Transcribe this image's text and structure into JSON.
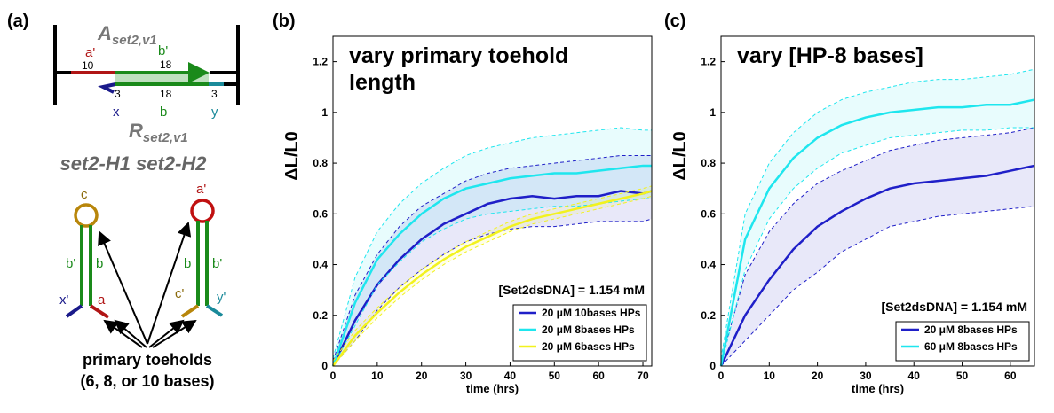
{
  "diagram": {
    "panel_label": "(a)",
    "complex_top": {
      "label": "A",
      "subscript": "set2,v1"
    },
    "complex_bottom": {
      "label": "R",
      "subscript": "set2,v1"
    },
    "top_domains": [
      {
        "name": "a'",
        "length": "10"
      },
      {
        "name": "b'",
        "length": "18"
      }
    ],
    "bottom_domains": [
      {
        "name": "x",
        "length": "3"
      },
      {
        "name": "b",
        "length": "18"
      },
      {
        "name": "y",
        "length": "3"
      }
    ],
    "hairpins_title": "set2-H1 set2-H2",
    "h1": {
      "loop": "c",
      "stem_left": "b'",
      "stem_right": "b",
      "tail_left": "x'",
      "tail_right": "a"
    },
    "h2": {
      "loop": "a'",
      "stem_left": "b",
      "stem_right": "b'",
      "tail_left": "c'",
      "tail_right": "y'"
    },
    "caption": [
      "primary toeholds",
      "(6, 8, or 10 bases)"
    ]
  },
  "chart_data": [
    {
      "type": "line",
      "panel_label": "(b)",
      "title": [
        "vary primary toehold",
        "length"
      ],
      "annotation": "[Set2dsDNA] = 1.154 mM",
      "xlabel": "time (hrs)",
      "ylabel": "ΔL/L0",
      "x": [
        0,
        5,
        10,
        15,
        20,
        25,
        30,
        35,
        40,
        45,
        50,
        55,
        60,
        65,
        70,
        72
      ],
      "xlim": [
        0,
        72
      ],
      "xticks": [
        0,
        10,
        20,
        30,
        40,
        50,
        60,
        70
      ],
      "ylim": [
        0,
        1.3
      ],
      "yticks": [
        0,
        0.2,
        0.4,
        0.6,
        0.8,
        1,
        1.2
      ],
      "legend": "lower right",
      "series": [
        {
          "name": "20 μM 10bases HPs",
          "color": "#1f1fc8",
          "values": [
            0,
            0.18,
            0.32,
            0.42,
            0.5,
            0.56,
            0.6,
            0.64,
            0.66,
            0.67,
            0.66,
            0.67,
            0.67,
            0.69,
            0.68,
            0.69
          ],
          "upper": [
            0.02,
            0.28,
            0.44,
            0.55,
            0.63,
            0.68,
            0.73,
            0.76,
            0.78,
            0.79,
            0.8,
            0.81,
            0.82,
            0.83,
            0.83,
            0.83
          ],
          "lower": [
            0,
            0.1,
            0.22,
            0.31,
            0.38,
            0.44,
            0.49,
            0.52,
            0.54,
            0.55,
            0.55,
            0.56,
            0.57,
            0.57,
            0.57,
            0.58
          ]
        },
        {
          "name": "20 μM 8bases HPs",
          "color": "#1ee6ee",
          "values": [
            0,
            0.25,
            0.42,
            0.52,
            0.6,
            0.66,
            0.7,
            0.72,
            0.74,
            0.75,
            0.76,
            0.76,
            0.77,
            0.78,
            0.79,
            0.79
          ],
          "upper": [
            0.03,
            0.35,
            0.53,
            0.64,
            0.72,
            0.78,
            0.83,
            0.86,
            0.88,
            0.9,
            0.91,
            0.92,
            0.93,
            0.94,
            0.93,
            0.93
          ],
          "lower": [
            0,
            0.16,
            0.32,
            0.41,
            0.49,
            0.54,
            0.58,
            0.6,
            0.61,
            0.62,
            0.63,
            0.63,
            0.64,
            0.65,
            0.66,
            0.66
          ]
        },
        {
          "name": "20 μM 6bases HPs",
          "color": "#f2f21e",
          "values": [
            0,
            0.12,
            0.21,
            0.29,
            0.36,
            0.42,
            0.47,
            0.51,
            0.55,
            0.58,
            0.6,
            0.62,
            0.64,
            0.66,
            0.68,
            0.69
          ],
          "upper": [
            0.02,
            0.14,
            0.23,
            0.31,
            0.38,
            0.44,
            0.49,
            0.53,
            0.57,
            0.6,
            0.62,
            0.64,
            0.66,
            0.68,
            0.7,
            0.71
          ],
          "lower": [
            0,
            0.1,
            0.19,
            0.27,
            0.34,
            0.4,
            0.45,
            0.49,
            0.53,
            0.56,
            0.58,
            0.6,
            0.62,
            0.64,
            0.66,
            0.67
          ]
        }
      ]
    },
    {
      "type": "line",
      "panel_label": "(c)",
      "title": [
        "vary [HP-8 bases]"
      ],
      "annotation": "[Set2dsDNA] = 1.154 mM",
      "xlabel": "time (hrs)",
      "ylabel": "ΔL/L0",
      "x": [
        0,
        5,
        10,
        15,
        20,
        25,
        30,
        35,
        40,
        45,
        50,
        55,
        60,
        65
      ],
      "xlim": [
        0,
        65
      ],
      "xticks": [
        0,
        10,
        20,
        30,
        40,
        50,
        60
      ],
      "ylim": [
        0,
        1.3
      ],
      "yticks": [
        0,
        0.2,
        0.4,
        0.6,
        0.8,
        1,
        1.2
      ],
      "legend": "lower right",
      "series": [
        {
          "name": "20 μM 8bases HPs",
          "color": "#1f1fc8",
          "values": [
            0,
            0.2,
            0.34,
            0.46,
            0.55,
            0.61,
            0.66,
            0.7,
            0.72,
            0.73,
            0.74,
            0.75,
            0.77,
            0.79
          ],
          "upper": [
            0.02,
            0.36,
            0.53,
            0.64,
            0.72,
            0.77,
            0.81,
            0.85,
            0.87,
            0.89,
            0.9,
            0.91,
            0.92,
            0.94
          ],
          "lower": [
            0,
            0.1,
            0.2,
            0.3,
            0.37,
            0.45,
            0.5,
            0.55,
            0.57,
            0.59,
            0.6,
            0.61,
            0.62,
            0.63
          ]
        },
        {
          "name": "60 μM 8bases HPs",
          "color": "#1ee6ee",
          "values": [
            0,
            0.5,
            0.7,
            0.82,
            0.9,
            0.95,
            0.98,
            1.0,
            1.01,
            1.02,
            1.02,
            1.03,
            1.03,
            1.05
          ],
          "upper": [
            0.03,
            0.6,
            0.8,
            0.92,
            1.0,
            1.05,
            1.08,
            1.1,
            1.12,
            1.13,
            1.13,
            1.14,
            1.15,
            1.17
          ],
          "lower": [
            0,
            0.38,
            0.58,
            0.7,
            0.78,
            0.84,
            0.87,
            0.9,
            0.91,
            0.92,
            0.93,
            0.93,
            0.94,
            0.94
          ]
        }
      ]
    }
  ]
}
